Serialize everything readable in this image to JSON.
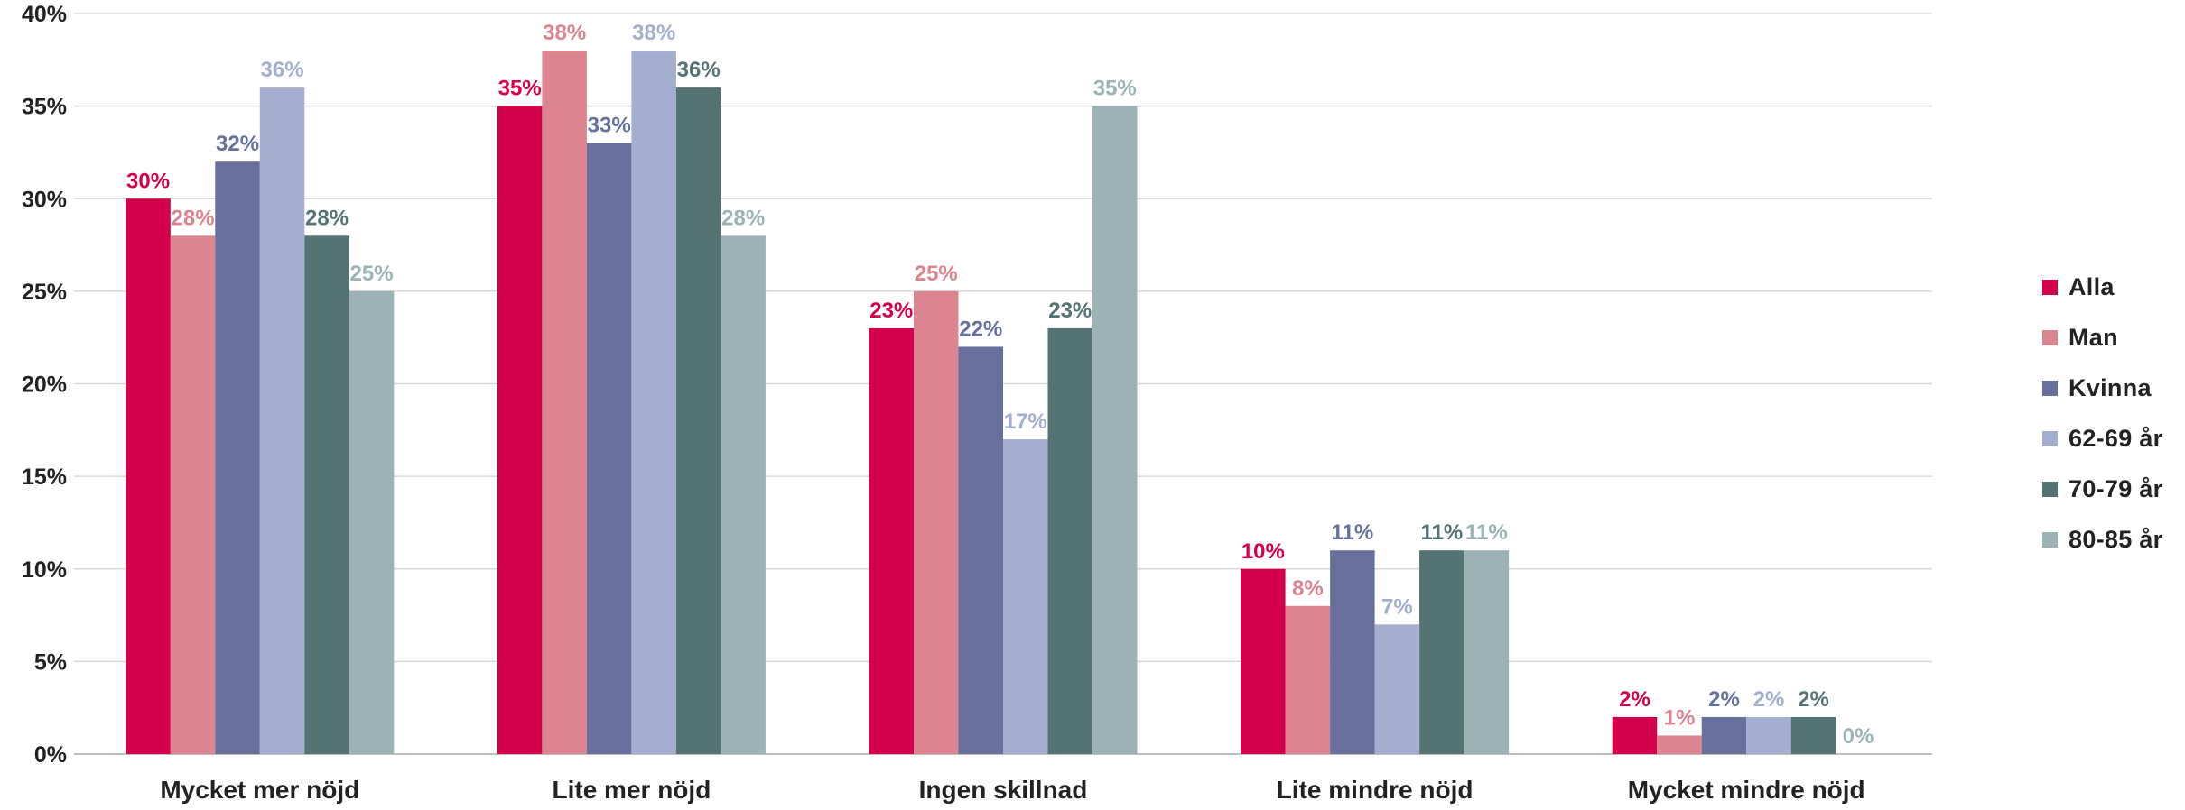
{
  "chart_data": {
    "type": "bar",
    "categories": [
      "Mycket mer nöjd",
      "Lite mer nöjd",
      "Ingen skillnad",
      "Lite mindre nöjd",
      "Mycket mindre nöjd"
    ],
    "series": [
      {
        "name": "Alla",
        "color": "#D5004B",
        "values": [
          30,
          35,
          23,
          10,
          2
        ],
        "labels": [
          "30%",
          "35%",
          "23%",
          "10%",
          "2%"
        ]
      },
      {
        "name": "Man",
        "color": "#DC8490",
        "values": [
          28,
          38,
          25,
          8,
          1
        ],
        "labels": [
          "28%",
          "38%",
          "25%",
          "8%",
          "1%"
        ]
      },
      {
        "name": "Kvinna",
        "color": "#67709C",
        "values": [
          32,
          33,
          22,
          11,
          2
        ],
        "labels": [
          "32%",
          "33%",
          "22%",
          "11%",
          "2%"
        ]
      },
      {
        "name": "62-69 år",
        "color": "#A4AFD0",
        "values": [
          36,
          38,
          17,
          7,
          2
        ],
        "labels": [
          "36%",
          "38%",
          "17%",
          "7%",
          "2%"
        ]
      },
      {
        "name": "70-79 år",
        "color": "#547473",
        "values": [
          28,
          36,
          23,
          11,
          2
        ],
        "labels": [
          "28%",
          "36%",
          "23%",
          "11%",
          "2%"
        ]
      },
      {
        "name": "80-85 år",
        "color": "#9BB3B5",
        "values": [
          25,
          28,
          35,
          11,
          0
        ],
        "labels": [
          "25%",
          "28%",
          "35%",
          "11%",
          "0%"
        ]
      }
    ],
    "title": "",
    "xlabel": "",
    "ylabel": "",
    "ylim": [
      0,
      40
    ],
    "yticks": [
      "0%",
      "5%",
      "10%",
      "15%",
      "20%",
      "25%",
      "30%",
      "35%",
      "40%"
    ],
    "grid": true,
    "legend_position": "right"
  }
}
